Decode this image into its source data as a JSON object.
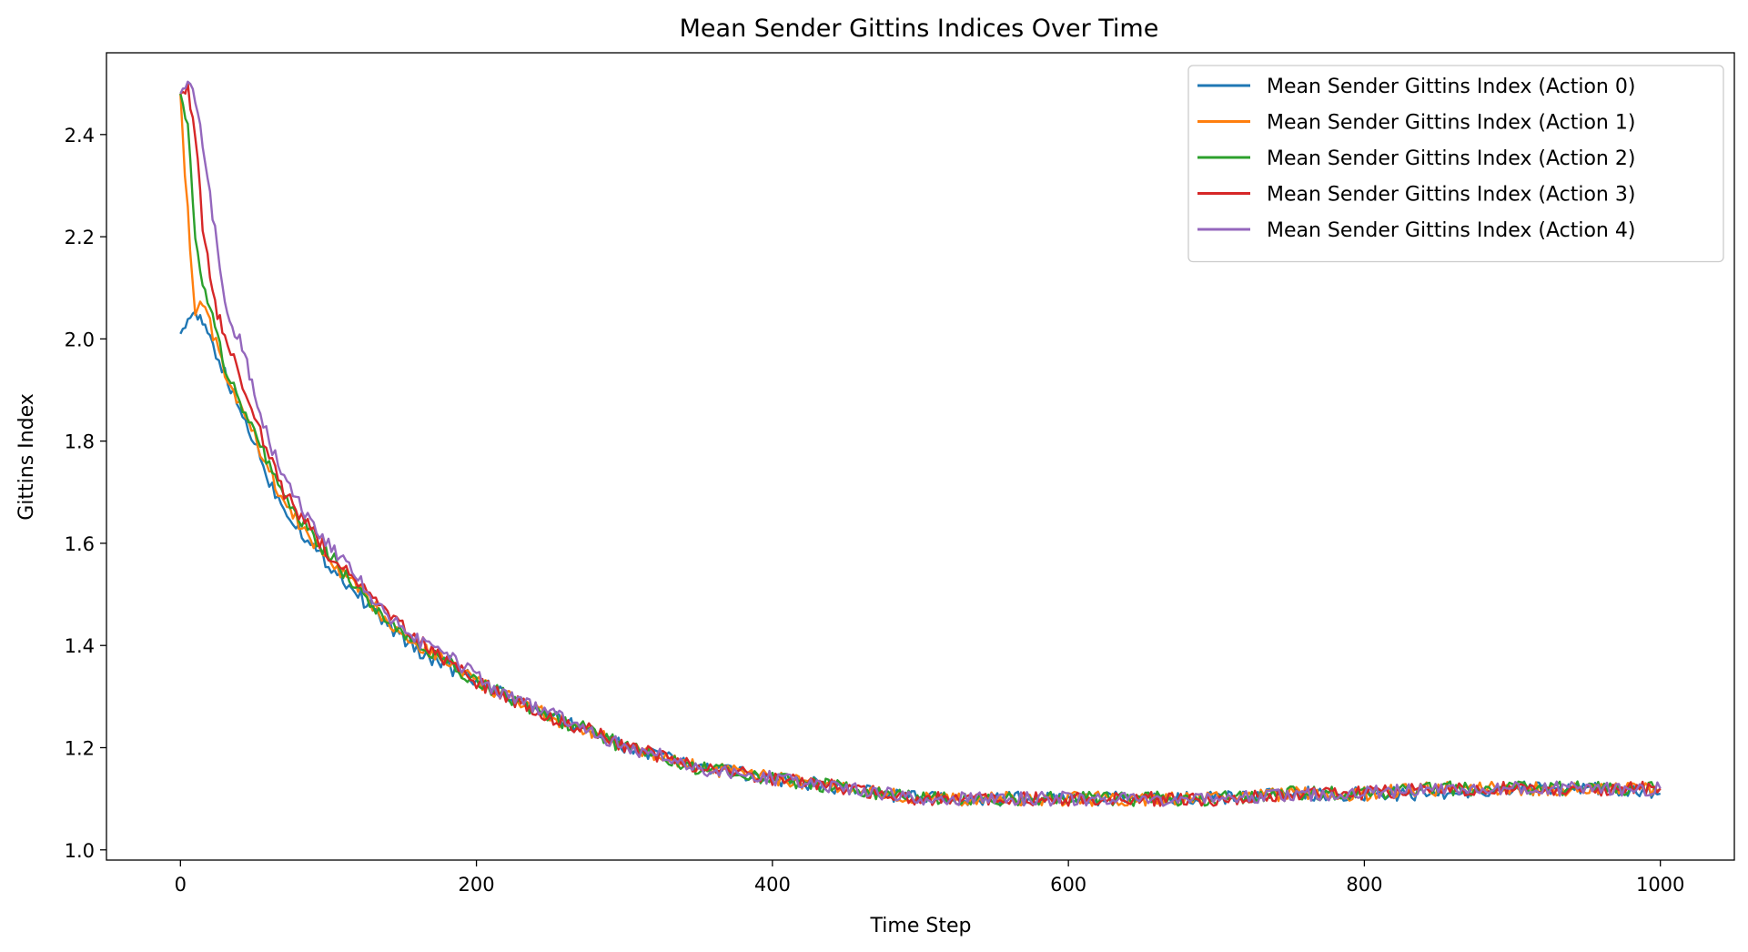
{
  "chart_data": {
    "type": "line",
    "title": "Mean Sender Gittins Indices Over Time",
    "xlabel": "Time Step",
    "ylabel": "Gittins Index",
    "xlim": [
      -50,
      1050
    ],
    "ylim": [
      0.98,
      2.56
    ],
    "xticks": [
      0,
      200,
      400,
      600,
      800,
      1000
    ],
    "yticks": [
      1.0,
      1.2,
      1.4,
      1.6,
      1.8,
      2.0,
      2.2,
      2.4
    ],
    "grid": false,
    "legend_position": "top-right",
    "series": [
      {
        "name": "Mean Sender Gittins Index (Action 0)",
        "color": "#1f77b4",
        "x": [
          0,
          5,
          10,
          15,
          20,
          30,
          40,
          50,
          60,
          70,
          80,
          90,
          100,
          120,
          140,
          160,
          180,
          200,
          220,
          250,
          280,
          300,
          330,
          350,
          380,
          400,
          450,
          500,
          550,
          600,
          650,
          700,
          750,
          800,
          850,
          900,
          950,
          1000
        ],
        "values": [
          2.01,
          2.04,
          2.04,
          2.03,
          2.0,
          1.93,
          1.86,
          1.8,
          1.72,
          1.67,
          1.63,
          1.59,
          1.56,
          1.5,
          1.44,
          1.39,
          1.36,
          1.33,
          1.3,
          1.26,
          1.23,
          1.2,
          1.18,
          1.16,
          1.15,
          1.14,
          1.12,
          1.1,
          1.1,
          1.1,
          1.1,
          1.1,
          1.11,
          1.11,
          1.11,
          1.12,
          1.12,
          1.11
        ]
      },
      {
        "name": "Mean Sender Gittins Index (Action 1)",
        "color": "#ff7f0e",
        "x": [
          0,
          3,
          5,
          8,
          10,
          15,
          20,
          30,
          40,
          50,
          60,
          70,
          80,
          90,
          100,
          120,
          140,
          160,
          180,
          200,
          220,
          250,
          280,
          300,
          330,
          350,
          380,
          400,
          450,
          500,
          550,
          600,
          650,
          700,
          750,
          800,
          850,
          900,
          950,
          1000
        ],
        "values": [
          2.48,
          2.32,
          2.25,
          2.12,
          2.06,
          2.07,
          2.03,
          1.93,
          1.87,
          1.81,
          1.74,
          1.68,
          1.64,
          1.6,
          1.57,
          1.51,
          1.45,
          1.4,
          1.37,
          1.33,
          1.3,
          1.26,
          1.23,
          1.2,
          1.18,
          1.16,
          1.15,
          1.14,
          1.12,
          1.1,
          1.1,
          1.1,
          1.1,
          1.1,
          1.11,
          1.11,
          1.12,
          1.12,
          1.12,
          1.12
        ]
      },
      {
        "name": "Mean Sender Gittins Index (Action 2)",
        "color": "#2ca02c",
        "x": [
          0,
          5,
          10,
          15,
          20,
          25,
          30,
          40,
          50,
          60,
          70,
          80,
          90,
          100,
          120,
          140,
          160,
          180,
          200,
          220,
          250,
          280,
          300,
          330,
          350,
          380,
          400,
          450,
          500,
          550,
          600,
          650,
          700,
          750,
          800,
          850,
          900,
          950,
          1000
        ],
        "values": [
          2.48,
          2.42,
          2.2,
          2.1,
          2.06,
          2.0,
          1.95,
          1.88,
          1.82,
          1.75,
          1.69,
          1.65,
          1.61,
          1.58,
          1.51,
          1.45,
          1.4,
          1.37,
          1.33,
          1.3,
          1.26,
          1.23,
          1.2,
          1.18,
          1.16,
          1.15,
          1.14,
          1.12,
          1.1,
          1.1,
          1.1,
          1.1,
          1.1,
          1.11,
          1.11,
          1.12,
          1.12,
          1.12,
          1.12
        ]
      },
      {
        "name": "Mean Sender Gittins Index (Action 3)",
        "color": "#d62728",
        "x": [
          0,
          5,
          10,
          15,
          20,
          25,
          30,
          40,
          50,
          60,
          70,
          80,
          90,
          100,
          120,
          140,
          160,
          180,
          200,
          220,
          250,
          280,
          300,
          330,
          350,
          380,
          400,
          450,
          500,
          550,
          600,
          650,
          700,
          750,
          800,
          850,
          900,
          950,
          1000
        ],
        "values": [
          2.48,
          2.49,
          2.4,
          2.22,
          2.13,
          2.05,
          2.0,
          1.93,
          1.85,
          1.77,
          1.7,
          1.66,
          1.62,
          1.58,
          1.52,
          1.46,
          1.41,
          1.37,
          1.33,
          1.3,
          1.26,
          1.23,
          1.2,
          1.18,
          1.16,
          1.15,
          1.14,
          1.12,
          1.1,
          1.1,
          1.1,
          1.1,
          1.1,
          1.11,
          1.11,
          1.12,
          1.12,
          1.12,
          1.12
        ]
      },
      {
        "name": "Mean Sender Gittins Index (Action 4)",
        "color": "#9467bd",
        "x": [
          0,
          5,
          10,
          15,
          20,
          25,
          30,
          35,
          40,
          45,
          50,
          60,
          70,
          80,
          90,
          100,
          120,
          140,
          160,
          180,
          200,
          220,
          250,
          280,
          300,
          330,
          350,
          380,
          400,
          450,
          500,
          550,
          600,
          650,
          700,
          750,
          800,
          850,
          900,
          950,
          1000
        ],
        "values": [
          2.48,
          2.51,
          2.46,
          2.38,
          2.28,
          2.18,
          2.08,
          2.02,
          2.0,
          1.95,
          1.9,
          1.8,
          1.73,
          1.68,
          1.63,
          1.6,
          1.53,
          1.46,
          1.41,
          1.38,
          1.34,
          1.3,
          1.27,
          1.23,
          1.2,
          1.18,
          1.16,
          1.15,
          1.14,
          1.12,
          1.1,
          1.1,
          1.1,
          1.1,
          1.1,
          1.11,
          1.11,
          1.12,
          1.12,
          1.12,
          1.12
        ]
      }
    ]
  }
}
